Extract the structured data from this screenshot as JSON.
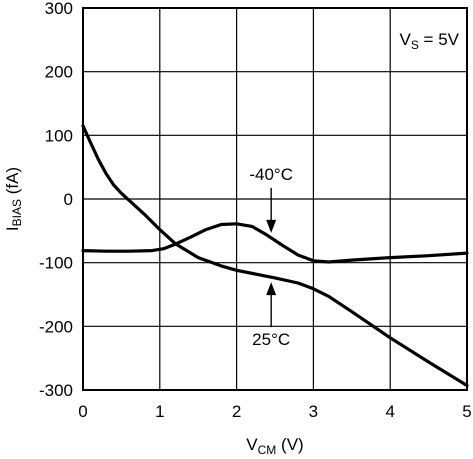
{
  "chart_data": {
    "type": "line",
    "title": "",
    "xlabel": {
      "main": "V",
      "sub": "CM",
      "unit": " (V)"
    },
    "ylabel": {
      "main": "I",
      "sub": "BIAS",
      "unit": " (fA)"
    },
    "xlim": [
      0,
      5
    ],
    "ylim": [
      -300,
      300
    ],
    "x_ticks": [
      0,
      1,
      2,
      3,
      4,
      5
    ],
    "y_ticks": [
      300,
      200,
      100,
      0,
      -100,
      -200,
      -300
    ],
    "grid": true,
    "condition_label": {
      "main": "V",
      "sub": "S",
      "rest": " = 5V"
    },
    "series": [
      {
        "label": "-40°C",
        "x": [
          0,
          0.3,
          0.6,
          0.9,
          1.05,
          1.2,
          1.4,
          1.6,
          1.8,
          2.0,
          2.2,
          2.4,
          2.6,
          2.8,
          3.0,
          3.2,
          3.5,
          4.0,
          4.5,
          5.0
        ],
        "y": [
          -81,
          -82,
          -82,
          -81,
          -78,
          -71,
          -60,
          -48,
          -40,
          -39,
          -43,
          -57,
          -73,
          -88,
          -97,
          -99,
          -96,
          -92,
          -89,
          -85
        ]
      },
      {
        "label": "25°C",
        "x": [
          0,
          0.1,
          0.2,
          0.3,
          0.4,
          0.5,
          0.6,
          0.8,
          1.0,
          1.2,
          1.5,
          1.8,
          2.0,
          2.5,
          2.8,
          3.0,
          3.2,
          3.5,
          4.0,
          4.5,
          5.0
        ],
        "y": [
          115,
          88,
          62,
          40,
          22,
          9,
          -2,
          -24,
          -48,
          -70,
          -92,
          -105,
          -112,
          -124,
          -132,
          -141,
          -153,
          -177,
          -218,
          -256,
          -293
        ]
      }
    ],
    "annotations": [
      {
        "text": "-40°C",
        "target_series": 0,
        "at_x": 2.45
      },
      {
        "text": "25°C",
        "target_series": 1,
        "at_x": 2.45
      }
    ]
  }
}
